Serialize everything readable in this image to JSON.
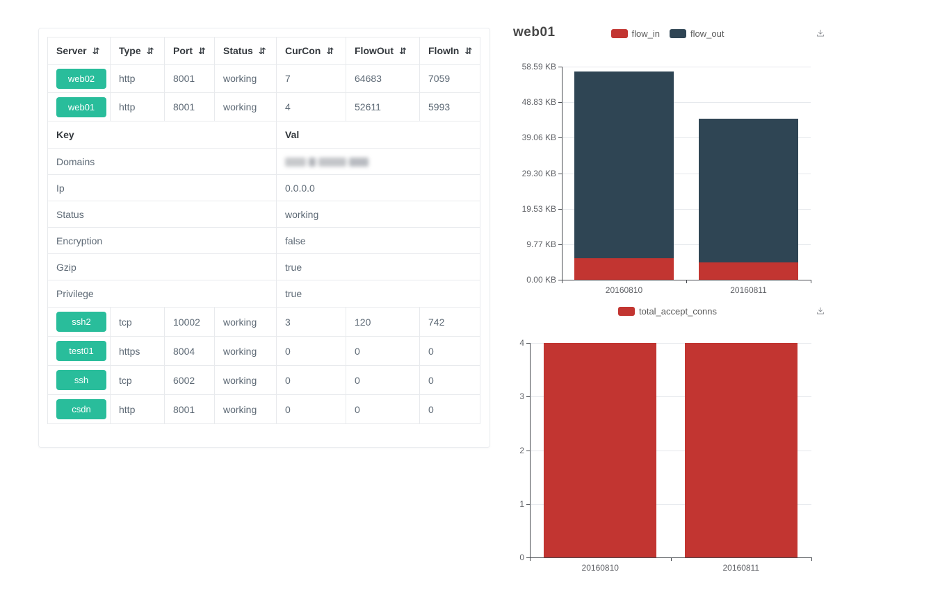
{
  "colors": {
    "accent_green": "#29bd9b",
    "bar_red": "#c23531",
    "bar_dark": "#2f4554",
    "grid_line": "#e5e8ec"
  },
  "table": {
    "sort_icon": "⇵",
    "columns": [
      {
        "label": "Server"
      },
      {
        "label": "Type"
      },
      {
        "label": "Port"
      },
      {
        "label": "Status"
      },
      {
        "label": "CurCon"
      },
      {
        "label": "FlowOut"
      },
      {
        "label": "FlowIn"
      }
    ],
    "top_rows": [
      {
        "server": "web02",
        "type": "http",
        "port": "8001",
        "status": "working",
        "curcon": "7",
        "flowout": "64683",
        "flowin": "7059"
      },
      {
        "server": "web01",
        "type": "http",
        "port": "8001",
        "status": "working",
        "curcon": "4",
        "flowout": "52611",
        "flowin": "5993"
      }
    ],
    "kv_header": {
      "key": "Key",
      "val": "Val"
    },
    "kv_rows": [
      {
        "key": "Domains",
        "val": "",
        "redacted": true
      },
      {
        "key": "Ip",
        "val": "0.0.0.0"
      },
      {
        "key": "Status",
        "val": "working"
      },
      {
        "key": "Encryption",
        "val": "false"
      },
      {
        "key": "Gzip",
        "val": "true"
      },
      {
        "key": "Privilege",
        "val": "true"
      }
    ],
    "bottom_rows": [
      {
        "server": "ssh2",
        "type": "tcp",
        "port": "10002",
        "status": "working",
        "curcon": "3",
        "flowout": "120",
        "flowin": "742"
      },
      {
        "server": "test01",
        "type": "https",
        "port": "8004",
        "status": "working",
        "curcon": "0",
        "flowout": "0",
        "flowin": "0"
      },
      {
        "server": "ssh",
        "type": "tcp",
        "port": "6002",
        "status": "working",
        "curcon": "0",
        "flowout": "0",
        "flowin": "0"
      },
      {
        "server": "csdn",
        "type": "http",
        "port": "8001",
        "status": "working",
        "curcon": "0",
        "flowout": "0",
        "flowin": "0"
      }
    ]
  },
  "chart_data": [
    {
      "type": "bar",
      "stacked": true,
      "title": "web01",
      "categories": [
        "20160810",
        "20160811"
      ],
      "series": [
        {
          "name": "flow_in",
          "color": "#c23531",
          "values": [
            5.85,
            4.78
          ]
        },
        {
          "name": "flow_out",
          "color": "#2f4554",
          "values": [
            51.38,
            39.52
          ]
        }
      ],
      "unit": "KB",
      "ylim": [
        0,
        58.59
      ],
      "yticks": [
        "0.00 KB",
        "9.77 KB",
        "19.53 KB",
        "29.30 KB",
        "39.06 KB",
        "48.83 KB",
        "58.59 KB"
      ],
      "legend_position": "top-center",
      "grid": true
    },
    {
      "type": "bar",
      "stacked": false,
      "title": "",
      "categories": [
        "20160810",
        "20160811"
      ],
      "series": [
        {
          "name": "total_accept_conns",
          "color": "#c23531",
          "values": [
            4,
            4
          ]
        }
      ],
      "unit": "",
      "ylim": [
        0,
        4
      ],
      "yticks": [
        "0",
        "1",
        "2",
        "3",
        "4"
      ],
      "legend_position": "top-center",
      "grid": true
    }
  ]
}
